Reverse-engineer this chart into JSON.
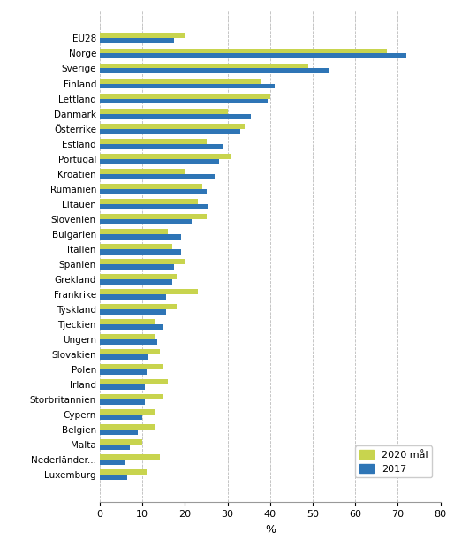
{
  "categories": [
    "EU28",
    "Norge",
    "Sverige",
    "Finland",
    "Lettland",
    "Danmark",
    "Österrike",
    "Estland",
    "Portugal",
    "Kroatien",
    "Rumänien",
    "Litauen",
    "Slovenien",
    "Bulgarien",
    "Italien",
    "Spanien",
    "Grekland",
    "Frankrike",
    "Tyskland",
    "Tjeckien",
    "Ungern",
    "Slovakien",
    "Polen",
    "Irland",
    "Storbritannien",
    "Cypern",
    "Belgien",
    "Malta",
    "Nederländer...",
    "Luxemburg"
  ],
  "values_2020": [
    20,
    67.5,
    49,
    38,
    40,
    30,
    34,
    25,
    31,
    20,
    24,
    23,
    25,
    16,
    17,
    20,
    18,
    23,
    18,
    13,
    13,
    14,
    15,
    16,
    15,
    13,
    13,
    10,
    14,
    11
  ],
  "values_2017": [
    17.5,
    72,
    54,
    41,
    39.5,
    35.5,
    33,
    29,
    28,
    27,
    25,
    25.5,
    21.5,
    19,
    19,
    17.5,
    17,
    15.5,
    15.5,
    15,
    13.5,
    11.5,
    11,
    10.5,
    10.5,
    10,
    9,
    7,
    6,
    6.5
  ],
  "color_2020": "#c8d44e",
  "color_2017": "#2e75b6",
  "xlabel": "%",
  "xlim": [
    0,
    80
  ],
  "xticks": [
    0,
    10,
    20,
    30,
    40,
    50,
    60,
    70,
    80
  ],
  "legend_2020": "2020 mål",
  "legend_2017": "2017",
  "background_color": "#ffffff",
  "grid_color": "#bbbbbb"
}
